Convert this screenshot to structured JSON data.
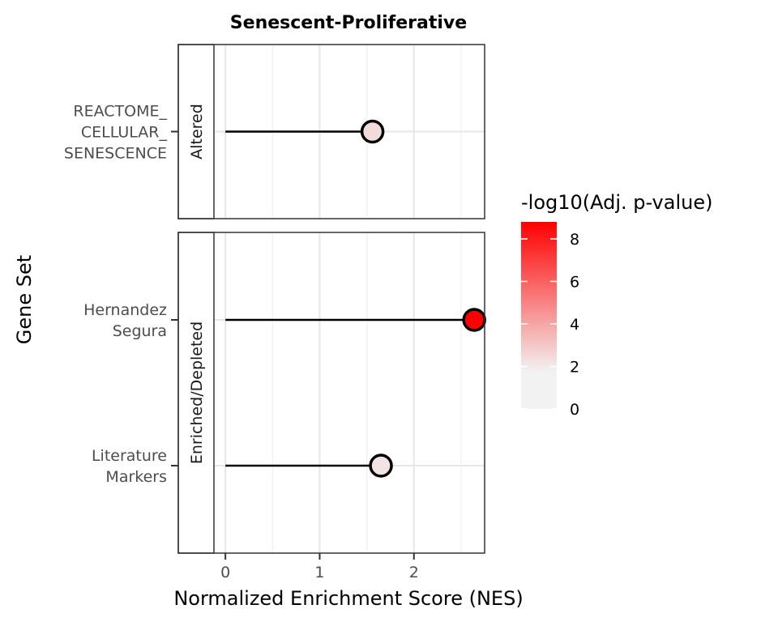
{
  "chart_data": {
    "type": "lollipop",
    "title": "Senescent-Proliferative",
    "xlabel": "Normalized Enrichment Score (NES)",
    "ylabel": "Gene Set",
    "xlim": [
      -0.5,
      2.75
    ],
    "x_ticks": [
      0,
      1,
      2
    ],
    "x_tick_labels": [
      "0",
      "1",
      "2"
    ],
    "grid": true,
    "legend": {
      "title": "-log10(Adj. p-value)",
      "placement": "right",
      "scale": {
        "min": 0,
        "max": 8.8,
        "low_color": "#f2f2f2",
        "high_color": "#ff0000"
      },
      "ticks": [
        0,
        2,
        4,
        6,
        8
      ],
      "tick_labels": [
        "0",
        "2",
        "4",
        "6",
        "8"
      ]
    },
    "facets": [
      {
        "strip_label": "Altered",
        "categories": [
          {
            "label_lines": [
              "REACTOME_",
              "CELLULAR_",
              "SENESCENCE"
            ],
            "nes": 1.56,
            "neglog10_padj": 1.8
          }
        ]
      },
      {
        "strip_label": "Enriched/Depleted",
        "categories": [
          {
            "label_lines": [
              "Hernandez",
              "Segura"
            ],
            "nes": 2.64,
            "neglog10_padj": 8.8
          },
          {
            "label_lines": [
              "Literature",
              "Markers"
            ],
            "nes": 1.65,
            "neglog10_padj": 1.5
          }
        ]
      }
    ]
  }
}
